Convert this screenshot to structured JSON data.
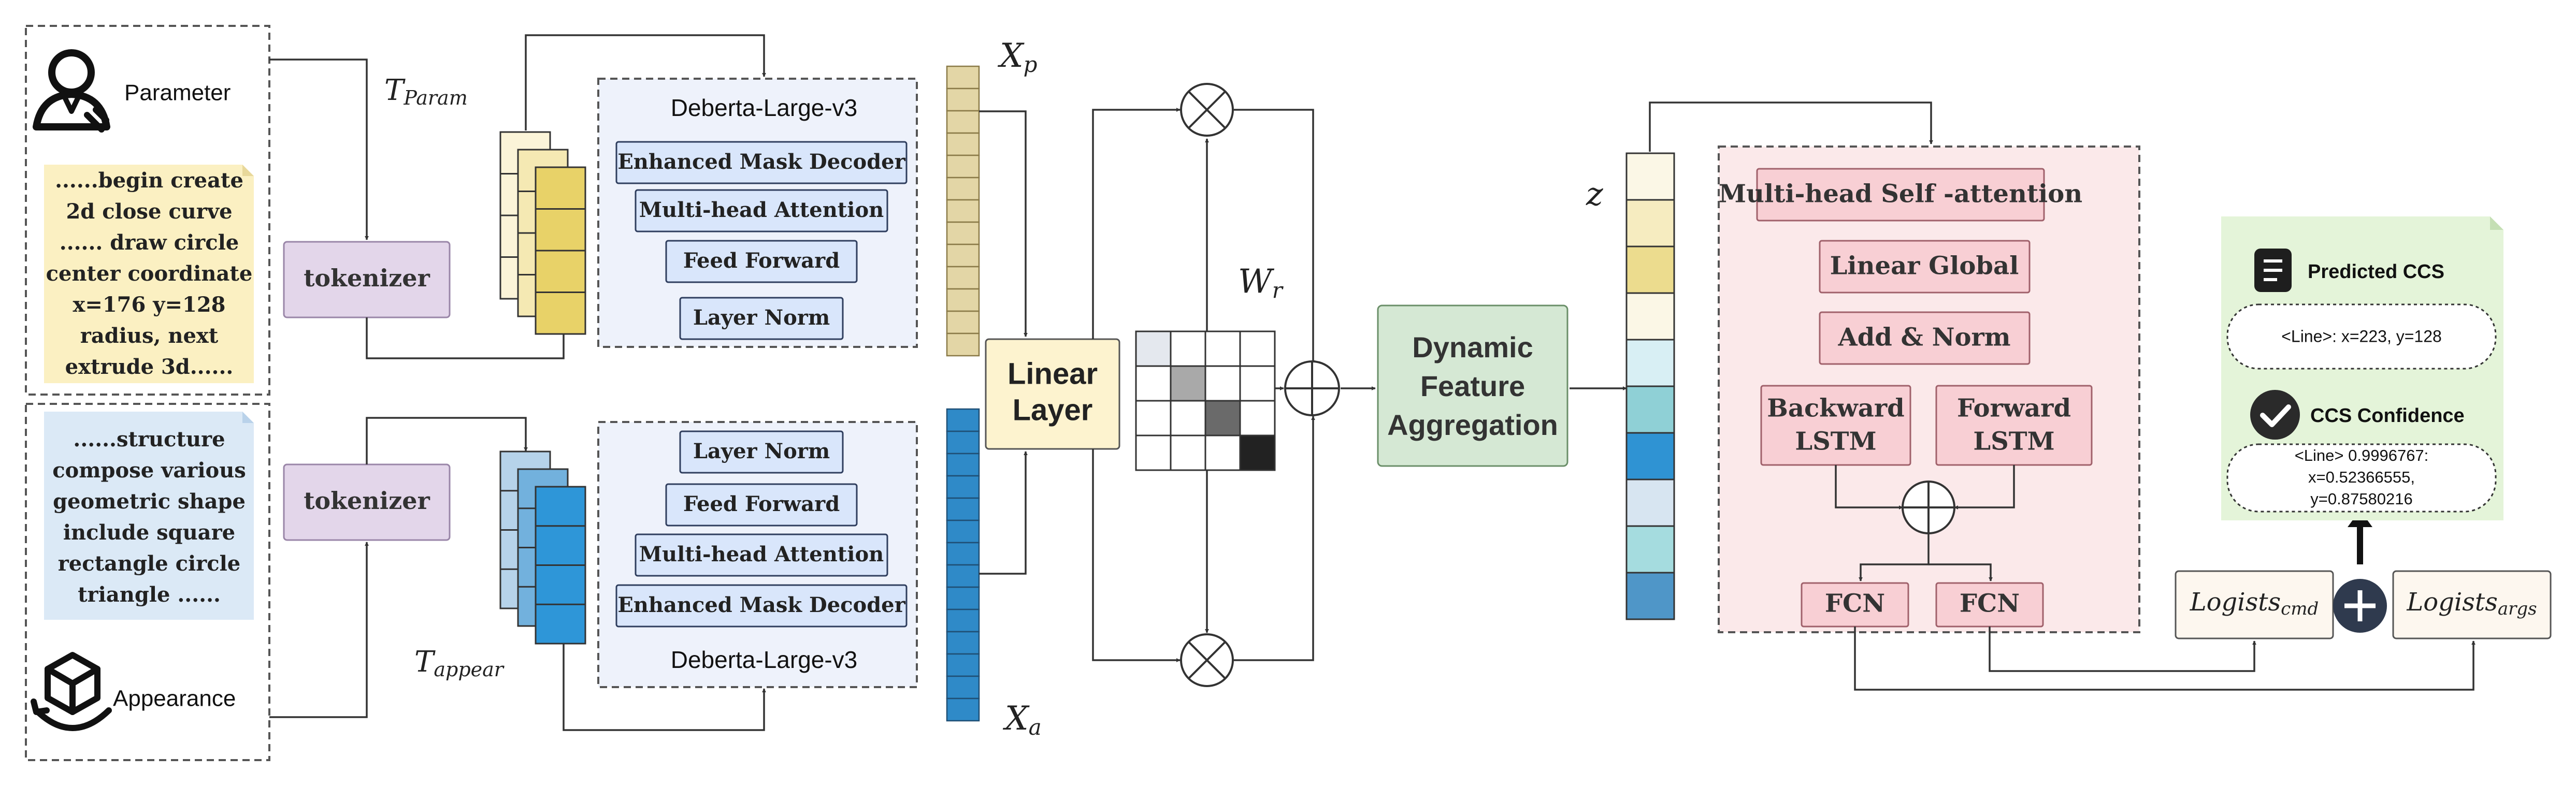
{
  "param_panel": {
    "label": "Parameter",
    "note_lines": [
      "......begin create",
      "2d close curve",
      "...... draw circle",
      "center coordinate",
      "x=176 y=128",
      "radius, next",
      "extrude 3d......"
    ]
  },
  "appear_panel": {
    "label": "Appearance",
    "note_lines": [
      "......structure",
      "compose various",
      "geometric shape",
      "include square",
      "rectangle circle",
      "triangle ......"
    ]
  },
  "tokenizer_top": "tokenizer",
  "tokenizer_bottom": "tokenizer",
  "t_param": {
    "base": "T",
    "sub": "Param"
  },
  "t_appear": {
    "base": "T",
    "sub": "appear"
  },
  "encoder_top": {
    "title": "Deberta-Large-v3",
    "layers": [
      "Enhanced Mask Decoder",
      "Multi-head Attention",
      "Feed Forward",
      "Layer Norm"
    ]
  },
  "encoder_bottom": {
    "title": "Deberta-Large-v3",
    "layers": [
      "Layer Norm",
      "Feed Forward",
      "Multi-head Attention",
      "Enhanced Mask Decoder"
    ]
  },
  "xp": {
    "base": "X",
    "sub": "p"
  },
  "xa": {
    "base": "X",
    "sub": "a"
  },
  "linear_layer": [
    "Linear",
    "Layer"
  ],
  "wr": {
    "base": "W",
    "sub": "r"
  },
  "dfa": [
    "Dynamic",
    "Feature",
    "Aggregation"
  ],
  "z_label": "z",
  "decoder": {
    "attention": "Multi-head Self -attention",
    "linear_global": "Linear Global",
    "add_norm": "Add & Norm",
    "backward_lstm": [
      "Backward",
      "LSTM"
    ],
    "forward_lstm": [
      "Forward",
      "LSTM"
    ],
    "fcn_left": "FCN",
    "fcn_right": "FCN"
  },
  "logits_cmd": {
    "base": "Logists",
    "sub": "cmd"
  },
  "logits_args": {
    "base": "Logists",
    "sub": "args"
  },
  "output_note": {
    "predicted_title": "Predicted CCS",
    "predicted_value": "<Line>: x=223, y=128",
    "confidence_title": "CCS Confidence",
    "confidence_lines": [
      "<Line> 0.9996767:",
      "x=0.52366555,",
      "y=0.87580216"
    ]
  },
  "colors": {
    "tokenizer_fill": "#e3d6ea",
    "tokenizer_stroke": "#9a86a8",
    "param_note_fill": "#fbf0c2",
    "appear_note_fill": "#dbe9f6",
    "encoder_panel_fill": "#eef2fb",
    "encoder_layer_fill": "#d9e6fb",
    "encoder_layer_stroke": "#2f3e5e",
    "linear_fill": "#fdf3cf",
    "dfa_fill": "#d5e8d4",
    "dfa_stroke": "#6b8f69",
    "decoder_panel_fill": "#fbe9ea",
    "decoder_block_fill": "#f8cfd4",
    "decoder_block_stroke": "#a0616b",
    "logits_fill": "#fdf7ef",
    "output_note_fill": "#e4f4d9",
    "plus_circle": "#2f3a4e",
    "xp_cell": "#e3d6a6",
    "xp_stroke": "#8a7a48",
    "xa_cell": "#2f8ac8",
    "xa_stroke": "#1f4f75"
  }
}
